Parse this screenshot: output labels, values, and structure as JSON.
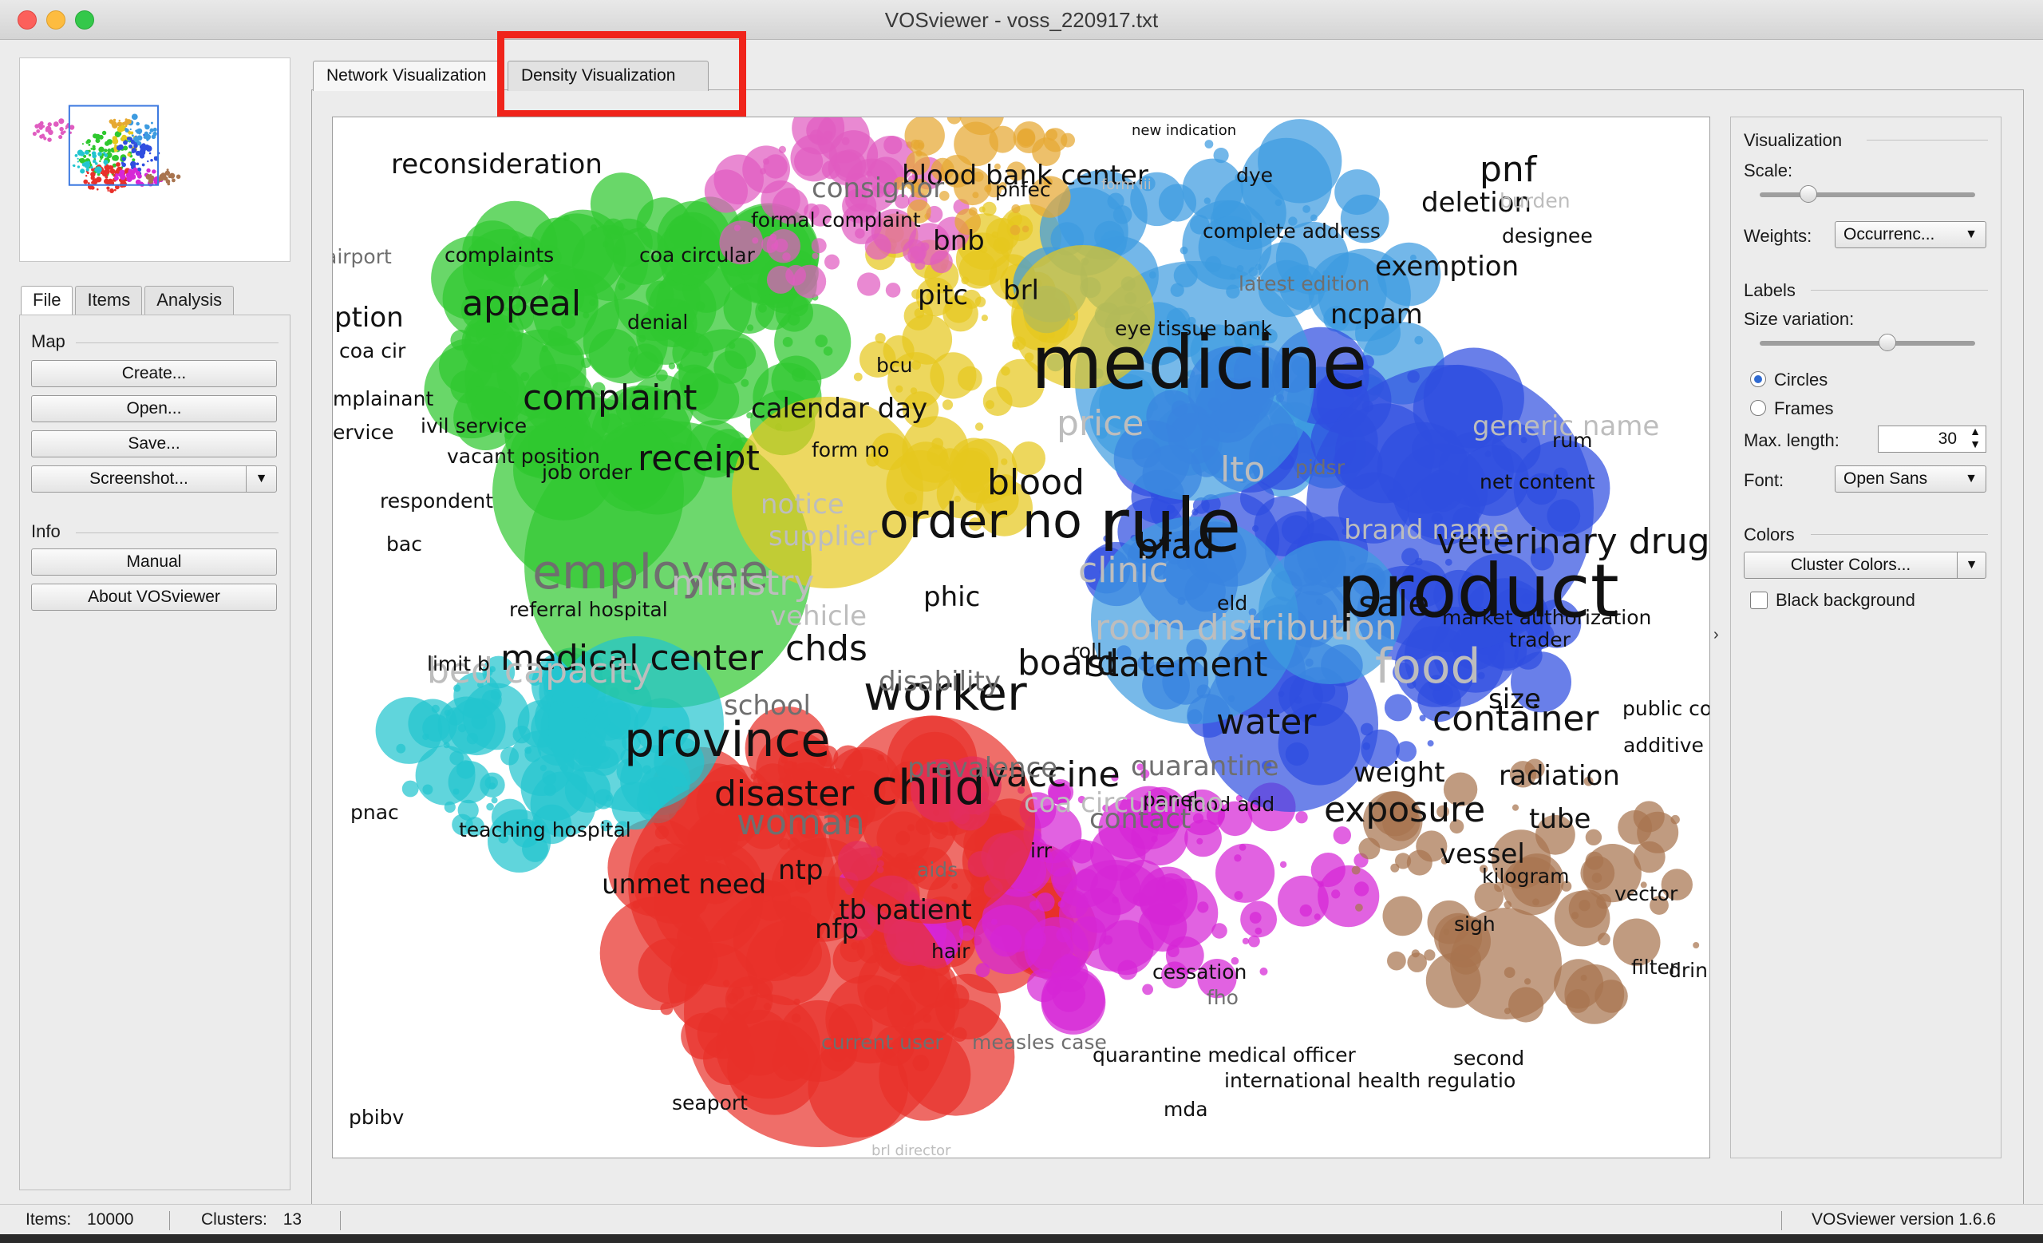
{
  "window": {
    "title": "VOSviewer - voss_220917.txt"
  },
  "left_tabs": [
    "File",
    "Items",
    "Analysis"
  ],
  "map_section": {
    "label": "Map",
    "buttons": [
      "Create...",
      "Open...",
      "Save...",
      "Screenshot..."
    ]
  },
  "info_section": {
    "label": "Info",
    "buttons": [
      "Manual",
      "About VOSviewer"
    ]
  },
  "main_tabs": [
    "Network Visualization",
    "Density Visualization"
  ],
  "right_panel": {
    "visualization_label": "Visualization",
    "scale_label": "Scale:",
    "scale_value": 0.2,
    "weights_label": "Weights:",
    "weights_value": "Occurrenc...",
    "labels_label": "Labels",
    "size_variation_label": "Size variation:",
    "size_variation_value": 0.6,
    "circles_label": "Circles",
    "frames_label": "Frames",
    "max_length_label": "Max. length:",
    "max_length_value": "30",
    "font_label": "Font:",
    "font_value": "Open Sans",
    "colors_label": "Colors",
    "cluster_colors_label": "Cluster Colors...",
    "black_background_label": "Black background"
  },
  "status": {
    "items_label": "Items:",
    "items_value": "10000",
    "clusters_label": "Clusters:",
    "clusters_value": "13",
    "version": "VOSviewer version 1.6.6"
  },
  "cluster_colors": {
    "red": "#e8302a",
    "green": "#2fc82f",
    "blue": "#2f4ee0",
    "yellow": "#e6c81e",
    "cyan": "#22c5cf",
    "magenta": "#d626d6",
    "pink": "#e05cc0",
    "brown": "#a8744f",
    "lightblue": "#3d9be0",
    "orange": "#e6a832"
  },
  "labels": [
    {
      "t": "medicine",
      "s": "xl",
      "c": "dark"
    },
    {
      "t": "rule",
      "s": "xl",
      "c": "dark"
    },
    {
      "t": "product",
      "s": "xl",
      "c": "dark"
    },
    {
      "t": "order no",
      "s": "l",
      "c": "dark"
    },
    {
      "t": "employee",
      "s": "l",
      "c": "mid"
    },
    {
      "t": "worker",
      "s": "l",
      "c": "dark"
    },
    {
      "t": "province",
      "s": "l",
      "c": "dark"
    },
    {
      "t": "child",
      "s": "l",
      "c": "dark"
    },
    {
      "t": "complaint",
      "s": "m",
      "c": "dark"
    },
    {
      "t": "receipt",
      "s": "m",
      "c": "dark"
    },
    {
      "t": "blood",
      "s": "m",
      "c": "dark"
    },
    {
      "t": "bfad",
      "s": "m",
      "c": "dark"
    },
    {
      "t": "chds",
      "s": "m",
      "c": "dark"
    },
    {
      "t": "disaster",
      "s": "m",
      "c": "dark"
    },
    {
      "t": "woman",
      "s": "m",
      "c": "mid"
    },
    {
      "t": "vaccine",
      "s": "m",
      "c": "dark"
    },
    {
      "t": "water",
      "s": "m",
      "c": "dark"
    },
    {
      "t": "sale",
      "s": "m",
      "c": "dark"
    },
    {
      "t": "board",
      "s": "m",
      "c": "dark"
    },
    {
      "t": "statement",
      "s": "m",
      "c": "dark"
    },
    {
      "t": "medical center",
      "s": "m",
      "c": "dark"
    },
    {
      "t": "container",
      "s": "m",
      "c": "dark"
    },
    {
      "t": "exposure",
      "s": "m",
      "c": "dark"
    },
    {
      "t": "veterinary drug",
      "s": "m",
      "c": "dark"
    },
    {
      "t": "pnf",
      "s": "m",
      "c": "dark"
    },
    {
      "t": "appeal",
      "s": "m",
      "c": "dark"
    },
    {
      "t": "blood bank center",
      "s": "s",
      "c": "dark"
    },
    {
      "t": "reconsideration",
      "s": "s",
      "c": "dark"
    },
    {
      "t": "consignor",
      "s": "s",
      "c": "mid"
    },
    {
      "t": "bnb",
      "s": "s",
      "c": "dark"
    },
    {
      "t": "brl",
      "s": "s",
      "c": "dark"
    },
    {
      "t": "pitc",
      "s": "s",
      "c": "dark"
    },
    {
      "t": "deletion",
      "s": "s",
      "c": "dark"
    },
    {
      "t": "exemption",
      "s": "s",
      "c": "dark"
    },
    {
      "t": "ncpam",
      "s": "s",
      "c": "dark"
    },
    {
      "t": "calendar day",
      "s": "s",
      "c": "dark"
    },
    {
      "t": "notice",
      "s": "s",
      "c": "faint"
    },
    {
      "t": "supplier",
      "s": "s",
      "c": "faint"
    },
    {
      "t": "phic",
      "s": "s",
      "c": "dark"
    },
    {
      "t": "disability",
      "s": "s",
      "c": "mid"
    },
    {
      "t": "school",
      "s": "s",
      "c": "mid"
    },
    {
      "t": "prevalence",
      "s": "s",
      "c": "mid"
    },
    {
      "t": "quarantine",
      "s": "s",
      "c": "mid"
    },
    {
      "t": "weight",
      "s": "s",
      "c": "dark"
    },
    {
      "t": "radiation",
      "s": "s",
      "c": "dark"
    },
    {
      "t": "tube",
      "s": "s",
      "c": "dark"
    },
    {
      "t": "vessel",
      "s": "s",
      "c": "dark"
    },
    {
      "t": "ntp",
      "s": "s",
      "c": "dark"
    },
    {
      "t": "unmet need",
      "s": "s",
      "c": "dark"
    },
    {
      "t": "tb patient",
      "s": "s",
      "c": "dark"
    },
    {
      "t": "nfp",
      "s": "s",
      "c": "dark"
    },
    {
      "t": "size",
      "s": "s",
      "c": "dark"
    },
    {
      "t": "contact",
      "s": "s",
      "c": "mid"
    },
    {
      "t": "food",
      "s": "l",
      "c": "faint"
    },
    {
      "t": "bed capacity",
      "s": "m",
      "c": "faint"
    },
    {
      "t": "vehicle",
      "s": "s",
      "c": "faint"
    },
    {
      "t": "room distribution",
      "s": "m",
      "c": "faint"
    },
    {
      "t": "generic name",
      "s": "s",
      "c": "faint"
    },
    {
      "t": "brand name",
      "s": "s",
      "c": "faint"
    },
    {
      "t": "lto",
      "s": "m",
      "c": "faint"
    },
    {
      "t": "ministry",
      "s": "m",
      "c": "faint"
    },
    {
      "t": "clinic",
      "s": "m",
      "c": "faint"
    },
    {
      "t": "price",
      "s": "m",
      "c": "faint"
    },
    {
      "t": "eye tissue bank",
      "s": "xs",
      "c": "dark"
    },
    {
      "t": "latest edition",
      "s": "xs",
      "c": "mid"
    },
    {
      "t": "complete address",
      "s": "xs",
      "c": "dark"
    },
    {
      "t": "formal complaint",
      "s": "xs",
      "c": "dark"
    },
    {
      "t": "coa circular",
      "s": "xs",
      "c": "dark"
    },
    {
      "t": "complaints",
      "s": "xs",
      "c": "dark"
    },
    {
      "t": "denial",
      "s": "xs",
      "c": "dark"
    },
    {
      "t": "form no",
      "s": "xs",
      "c": "dark"
    },
    {
      "t": "job order",
      "s": "xs",
      "c": "dark"
    },
    {
      "t": "respondent",
      "s": "xs",
      "c": "dark"
    },
    {
      "t": "vacant position",
      "s": "xs",
      "c": "dark"
    },
    {
      "t": "limit b",
      "s": "xs",
      "c": "dark"
    },
    {
      "t": "teaching hospital",
      "s": "xs",
      "c": "dark"
    },
    {
      "t": "referral hospital",
      "s": "xs",
      "c": "dark"
    },
    {
      "t": "roll",
      "s": "xs",
      "c": "dark"
    },
    {
      "t": "eld",
      "s": "xs",
      "c": "dark"
    },
    {
      "t": "rum",
      "s": "xs",
      "c": "dark"
    },
    {
      "t": "net content",
      "s": "xs",
      "c": "dark"
    },
    {
      "t": "market authorization",
      "s": "xs",
      "c": "dark"
    },
    {
      "t": "trader",
      "s": "xs",
      "c": "dark"
    },
    {
      "t": "public consultation",
      "s": "xs",
      "c": "dark"
    },
    {
      "t": "additive",
      "s": "xs",
      "c": "dark"
    },
    {
      "t": "food add",
      "s": "xs",
      "c": "dark"
    },
    {
      "t": "panel",
      "s": "xs",
      "c": "dark"
    },
    {
      "t": "irr",
      "s": "xs",
      "c": "dark"
    },
    {
      "t": "cessation",
      "s": "xs",
      "c": "dark"
    },
    {
      "t": "vector",
      "s": "xs",
      "c": "dark"
    },
    {
      "t": "second",
      "s": "xs",
      "c": "dark"
    },
    {
      "t": "quarantine medical officer",
      "s": "xs",
      "c": "dark"
    },
    {
      "t": "international health regulatio",
      "s": "xs",
      "c": "dark"
    },
    {
      "t": "seaport",
      "s": "xs",
      "c": "dark"
    },
    {
      "t": "current user",
      "s": "xs",
      "c": "mid"
    },
    {
      "t": "mda",
      "s": "xs",
      "c": "dark"
    },
    {
      "t": "measles case",
      "s": "xs",
      "c": "mid"
    },
    {
      "t": "pidsr",
      "s": "xs",
      "c": "mid"
    },
    {
      "t": "dye",
      "s": "xs",
      "c": "dark"
    },
    {
      "t": "designee",
      "s": "xs",
      "c": "dark"
    },
    {
      "t": "pnfec",
      "s": "xs",
      "c": "dark"
    },
    {
      "t": "bcu",
      "s": "xs",
      "c": "dark"
    },
    {
      "t": "bac",
      "s": "xs",
      "c": "dark"
    },
    {
      "t": "pnac",
      "s": "xs",
      "c": "dark"
    },
    {
      "t": "sigh",
      "s": "xs",
      "c": "dark"
    },
    {
      "t": "drink",
      "s": "xs",
      "c": "dark"
    },
    {
      "t": "filter",
      "s": "xs",
      "c": "dark"
    },
    {
      "t": "kilogram",
      "s": "xs",
      "c": "dark"
    },
    {
      "t": "hair",
      "s": "xs",
      "c": "dark"
    },
    {
      "t": "aids",
      "s": "xs",
      "c": "mid"
    },
    {
      "t": "fho",
      "s": "xs",
      "c": "mid"
    },
    {
      "t": "airport",
      "s": "xs",
      "c": "mid"
    },
    {
      "t": "ption",
      "s": "s",
      "c": "dark"
    },
    {
      "t": "coa cir",
      "s": "xs",
      "c": "dark"
    },
    {
      "t": "mplainant",
      "s": "xs",
      "c": "dark"
    },
    {
      "t": "ervice",
      "s": "xs",
      "c": "dark"
    },
    {
      "t": "ivil service",
      "s": "xs",
      "c": "dark"
    },
    {
      "t": "coa circular no",
      "s": "s",
      "c": "faint"
    },
    {
      "t": "burden",
      "s": "xs",
      "c": "faint"
    },
    {
      "t": "new indication",
      "s": "xxs",
      "c": "dark"
    },
    {
      "t": "form iii",
      "s": "xxs",
      "c": "faint"
    },
    {
      "t": "brl director",
      "s": "xxs",
      "c": "faint"
    },
    {
      "t": "pbibv",
      "s": "xs",
      "c": "dark"
    }
  ]
}
